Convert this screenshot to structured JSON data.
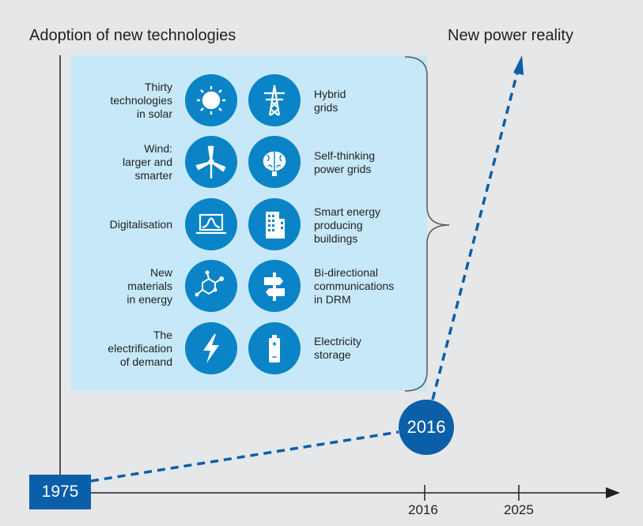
{
  "titles": {
    "left": "Adoption of new technologies",
    "right": "New power reality"
  },
  "badges": {
    "start_year": "1975",
    "milestone_year": "2016"
  },
  "axis": {
    "ticks": [
      "2016",
      "2025"
    ]
  },
  "technologies": [
    {
      "lines": [
        "Thirty",
        "technologies",
        "in solar"
      ],
      "icon": "sun-icon"
    },
    {
      "lines": [
        "Hybrid",
        "grids"
      ],
      "icon": "transmission-tower-icon"
    },
    {
      "lines": [
        "Wind:",
        "larger and",
        "smarter"
      ],
      "icon": "wind-turbine-icon"
    },
    {
      "lines": [
        "Self-thinking",
        "power grids"
      ],
      "icon": "brain-icon"
    },
    {
      "lines": [
        "Digitalisation"
      ],
      "icon": "laptop-chart-icon"
    },
    {
      "lines": [
        "Smart energy",
        "producing",
        "buildings"
      ],
      "icon": "building-icon"
    },
    {
      "lines": [
        "New",
        "materials",
        "in energy"
      ],
      "icon": "molecule-icon"
    },
    {
      "lines": [
        "Bi-directional",
        "communications",
        "in DRM"
      ],
      "icon": "signpost-icon"
    },
    {
      "lines": [
        "The",
        "electrification",
        "of demand"
      ],
      "icon": "lightning-icon"
    },
    {
      "lines": [
        "Electricity",
        "storage"
      ],
      "icon": "battery-icon"
    }
  ],
  "colors": {
    "panel": "#c6e8f9",
    "icon_circle": "#0a84c6",
    "badge": "#0a5fa8",
    "dashed_line": "#0a5fa8",
    "axis": "#231f20"
  }
}
